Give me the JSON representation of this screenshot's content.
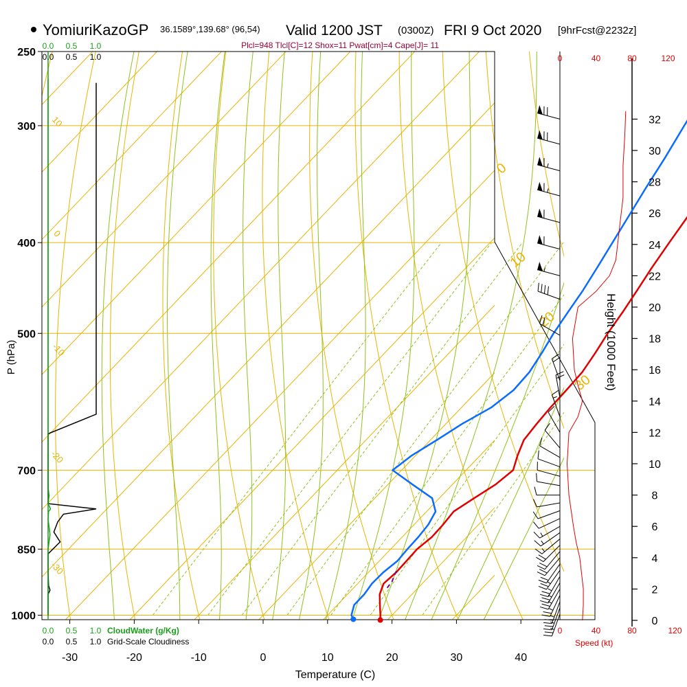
{
  "header": {
    "model": "YomiuriKazoGP",
    "coords": "36.1589°,139.68° (96,54)",
    "valid": "Valid 1200 JST",
    "utc": "(0300Z)",
    "date": "FRI 9 Oct 2020",
    "forecast": "[9hrFcst@2232z]",
    "indices": "Plcl=948 Tlcl[C]=12 Shox=11 Pwat[cm]=4 Cape[J]= 11"
  },
  "colors": {
    "temperature": "#e00000",
    "dewpoint": "#0a6cff",
    "isotherm": "#e8b400",
    "dry_adiabat": "#e8b400",
    "moist_adiabat": "#8cc21a",
    "mixing_ratio": "#8cc21a",
    "cloudwater": "#1a9e1a",
    "wind_speed": "#e00000"
  },
  "chart_data": {
    "type": "skew-t",
    "title": "YomiuriKazoGP Valid 1200 JST FRI 9 Oct 2020",
    "xlabel": "Temperature (C)",
    "ylabel": "P (hPa)",
    "y2label": "Height (1000 Feet)",
    "x_ticks": [
      -30,
      -20,
      -10,
      0,
      10,
      20,
      30,
      40
    ],
    "p_ticks": [
      250,
      300,
      400,
      500,
      700,
      850,
      1000
    ],
    "height_ticks": [
      0,
      2,
      4,
      6,
      8,
      10,
      12,
      14,
      16,
      18,
      20,
      22,
      24,
      26,
      28,
      30,
      32
    ],
    "cloud_axis_ticks": [
      "0.0",
      "0.5",
      "1.0"
    ],
    "cloudwater_label": "CloudWater (g/Kg)",
    "cloudiness_label": "Grid-Scale Cloudiness",
    "speed_ticks": [
      "0",
      "40",
      "80",
      "120"
    ],
    "speed_label": "Speed (kt)",
    "dry_adiabat_labels": [
      "-10",
      "0",
      "10",
      "20",
      "30"
    ],
    "isotherm_labels": [
      "10",
      "0",
      "-10",
      "-20",
      "-30"
    ],
    "mixing_ratio_labels": [
      "1",
      "2",
      "3",
      "5",
      "8",
      "12",
      "20"
    ],
    "series": [
      {
        "name": "Temperature",
        "points": [
          [
            1012,
            18.9
          ],
          [
            1000,
            18.2
          ],
          [
            975,
            16.6
          ],
          [
            950,
            15.0
          ],
          [
            925,
            14.0
          ],
          [
            900,
            14.3
          ],
          [
            875,
            14.2
          ],
          [
            850,
            14.1
          ],
          [
            825,
            14.6
          ],
          [
            800,
            14.5
          ],
          [
            775,
            14.2
          ],
          [
            750,
            15.4
          ],
          [
            725,
            16.7
          ],
          [
            700,
            17.3
          ],
          [
            675,
            15.8
          ],
          [
            650,
            14.5
          ],
          [
            625,
            14.1
          ],
          [
            600,
            13.8
          ],
          [
            575,
            13.7
          ],
          [
            550,
            13.5
          ],
          [
            525,
            12.7
          ],
          [
            500,
            11.7
          ],
          [
            475,
            10.9
          ],
          [
            450,
            9.9
          ],
          [
            425,
            8.8
          ],
          [
            400,
            7.8
          ],
          [
            375,
            6.8
          ],
          [
            350,
            5.7
          ],
          [
            325,
            4.2
          ],
          [
            300,
            2.4
          ],
          [
            285,
            1.7
          ],
          [
            275,
            1.3
          ],
          [
            266,
            0.7
          ]
        ]
      },
      {
        "name": "Dewpoint",
        "points": [
          [
            1010,
            14.6
          ],
          [
            1000,
            13.7
          ],
          [
            975,
            12.6
          ],
          [
            950,
            12.6
          ],
          [
            925,
            12.2
          ],
          [
            900,
            12.3
          ],
          [
            875,
            12.8
          ],
          [
            850,
            12.6
          ],
          [
            825,
            12.5
          ],
          [
            800,
            12.2
          ],
          [
            775,
            11.4
          ],
          [
            750,
            8.9
          ],
          [
            725,
            3.8
          ],
          [
            700,
            -1.4
          ],
          [
            675,
            -0.6
          ],
          [
            650,
            1.0
          ],
          [
            625,
            2.5
          ],
          [
            600,
            4.6
          ],
          [
            575,
            5.5
          ],
          [
            550,
            5.3
          ],
          [
            525,
            4.4
          ],
          [
            500,
            3.3
          ],
          [
            475,
            2.4
          ],
          [
            450,
            1.5
          ],
          [
            425,
            0.3
          ],
          [
            400,
            -1.0
          ],
          [
            375,
            -2.4
          ],
          [
            350,
            -3.9
          ],
          [
            325,
            -5.4
          ],
          [
            300,
            -7.2
          ],
          [
            285,
            -8.3
          ],
          [
            275,
            -9.0
          ],
          [
            266,
            -9.4
          ]
        ]
      }
    ],
    "cloudwater_profile": [
      [
        1000,
        0
      ],
      [
        900,
        0
      ],
      [
        850,
        0
      ],
      [
        820,
        0.04
      ],
      [
        790,
        0.0
      ],
      [
        775,
        0.01
      ],
      [
        770,
        0.05
      ],
      [
        760,
        0.0
      ],
      [
        745,
        0.02
      ],
      [
        730,
        0.0
      ],
      [
        250,
        0
      ]
    ],
    "cloudiness_profile": [
      [
        1000,
        0
      ],
      [
        950,
        0
      ],
      [
        940,
        0.04
      ],
      [
        930,
        0.01
      ],
      [
        900,
        0
      ],
      [
        860,
        0
      ],
      [
        835,
        0.25
      ],
      [
        815,
        0.12
      ],
      [
        795,
        0.2
      ],
      [
        780,
        0.32
      ],
      [
        770,
        1.0
      ],
      [
        760,
        0.0
      ],
      [
        750,
        0.0
      ],
      [
        640,
        0
      ],
      [
        610,
        1.0
      ],
      [
        270,
        1.0
      ]
    ],
    "wind_speed_profile": [
      [
        0,
        25
      ],
      [
        1,
        26
      ],
      [
        2,
        26
      ],
      [
        3,
        24
      ],
      [
        4,
        22
      ],
      [
        5,
        18
      ],
      [
        6,
        15
      ],
      [
        8,
        10
      ],
      [
        10,
        8
      ],
      [
        12,
        10
      ],
      [
        13,
        20
      ],
      [
        14,
        25
      ],
      [
        15,
        20
      ],
      [
        16,
        16
      ],
      [
        18,
        14
      ],
      [
        20,
        20
      ],
      [
        21,
        40
      ],
      [
        22,
        55
      ],
      [
        23,
        62
      ],
      [
        25,
        66
      ],
      [
        27,
        70
      ],
      [
        29,
        70
      ],
      [
        31,
        72
      ],
      [
        32.5,
        73
      ]
    ],
    "wind_barbs": [
      {
        "h": 0.4,
        "dir": 200,
        "kt": 25
      },
      {
        "h": 0.8,
        "dir": 200,
        "kt": 26
      },
      {
        "h": 1.2,
        "dir": 200,
        "kt": 26
      },
      {
        "h": 1.6,
        "dir": 205,
        "kt": 26
      },
      {
        "h": 2.0,
        "dir": 210,
        "kt": 25
      },
      {
        "h": 2.4,
        "dir": 210,
        "kt": 25
      },
      {
        "h": 2.8,
        "dir": 210,
        "kt": 24
      },
      {
        "h": 3.2,
        "dir": 215,
        "kt": 23
      },
      {
        "h": 3.6,
        "dir": 215,
        "kt": 22
      },
      {
        "h": 4.0,
        "dir": 220,
        "kt": 21
      },
      {
        "h": 4.4,
        "dir": 220,
        "kt": 20
      },
      {
        "h": 4.8,
        "dir": 225,
        "kt": 18
      },
      {
        "h": 5.2,
        "dir": 230,
        "kt": 17
      },
      {
        "h": 5.6,
        "dir": 235,
        "kt": 15
      },
      {
        "h": 6.0,
        "dir": 240,
        "kt": 14
      },
      {
        "h": 6.5,
        "dir": 245,
        "kt": 12
      },
      {
        "h": 7.0,
        "dir": 250,
        "kt": 11
      },
      {
        "h": 7.5,
        "dir": 260,
        "kt": 10
      },
      {
        "h": 8.0,
        "dir": 270,
        "kt": 9
      },
      {
        "h": 8.6,
        "dir": 280,
        "kt": 8
      },
      {
        "h": 9.2,
        "dir": 285,
        "kt": 8
      },
      {
        "h": 9.8,
        "dir": 290,
        "kt": 8
      },
      {
        "h": 10.4,
        "dir": 300,
        "kt": 9
      },
      {
        "h": 11.0,
        "dir": 320,
        "kt": 10
      },
      {
        "h": 12.0,
        "dir": 330,
        "kt": 12
      },
      {
        "h": 13.0,
        "dir": 340,
        "kt": 15
      },
      {
        "h": 14.2,
        "dir": 350,
        "kt": 20
      },
      {
        "h": 15.3,
        "dir": 340,
        "kt": 18
      },
      {
        "h": 18.2,
        "dir": 300,
        "kt": 20
      },
      {
        "h": 20.5,
        "dir": 290,
        "kt": 40
      },
      {
        "h": 22.0,
        "dir": 285,
        "kt": 55
      },
      {
        "h": 23.7,
        "dir": 285,
        "kt": 60
      },
      {
        "h": 25.4,
        "dir": 285,
        "kt": 62
      },
      {
        "h": 27.1,
        "dir": 285,
        "kt": 65
      },
      {
        "h": 28.7,
        "dir": 285,
        "kt": 65
      },
      {
        "h": 30.4,
        "dir": 285,
        "kt": 68
      },
      {
        "h": 32.0,
        "dir": 285,
        "kt": 70
      }
    ]
  }
}
